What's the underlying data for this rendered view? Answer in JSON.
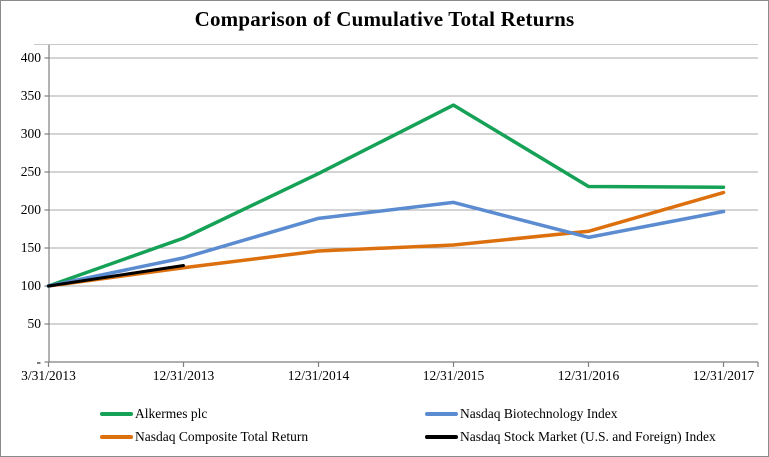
{
  "chart_data": {
    "type": "line",
    "title": "Comparison of Cumulative Total Returns",
    "categories": [
      "3/31/2013",
      "12/31/2013",
      "12/31/2014",
      "12/31/2015",
      "12/31/2016",
      "12/31/2017"
    ],
    "series": [
      {
        "name": "Alkermes plc",
        "color": "#15A156",
        "values": [
          100,
          163,
          248,
          338,
          231,
          230
        ]
      },
      {
        "name": "Nasdaq Biotechnology Index",
        "color": "#5B8BD0",
        "values": [
          100,
          137,
          189,
          210,
          164,
          198
        ]
      },
      {
        "name": "Nasdaq Composite Total Return",
        "color": "#DD700E",
        "values": [
          100,
          124,
          146,
          154,
          172,
          223
        ]
      },
      {
        "name": "Nasdaq Stock Market (U.S. and Foreign) Index",
        "color": "#000000",
        "values": [
          100,
          127,
          null,
          null,
          null,
          null
        ]
      }
    ],
    "y_axis": {
      "min": 0,
      "max": 400,
      "step": 50,
      "tick_labels": [
        "400",
        "350",
        "300",
        "250",
        "200",
        "150",
        "100",
        "50",
        "-"
      ]
    },
    "x_axis": {
      "label": "",
      "tick_labels": [
        "3/31/2013",
        "12/31/2013",
        "12/31/2014",
        "12/31/2015",
        "12/31/2016",
        "12/31/2017"
      ]
    },
    "grid": true,
    "legend_position": "bottom",
    "legend_columns": 2,
    "colors": {
      "gridline": "#A8A8A8",
      "axis": "#7F7F7F",
      "title_divider": "#C8C8C8"
    }
  }
}
